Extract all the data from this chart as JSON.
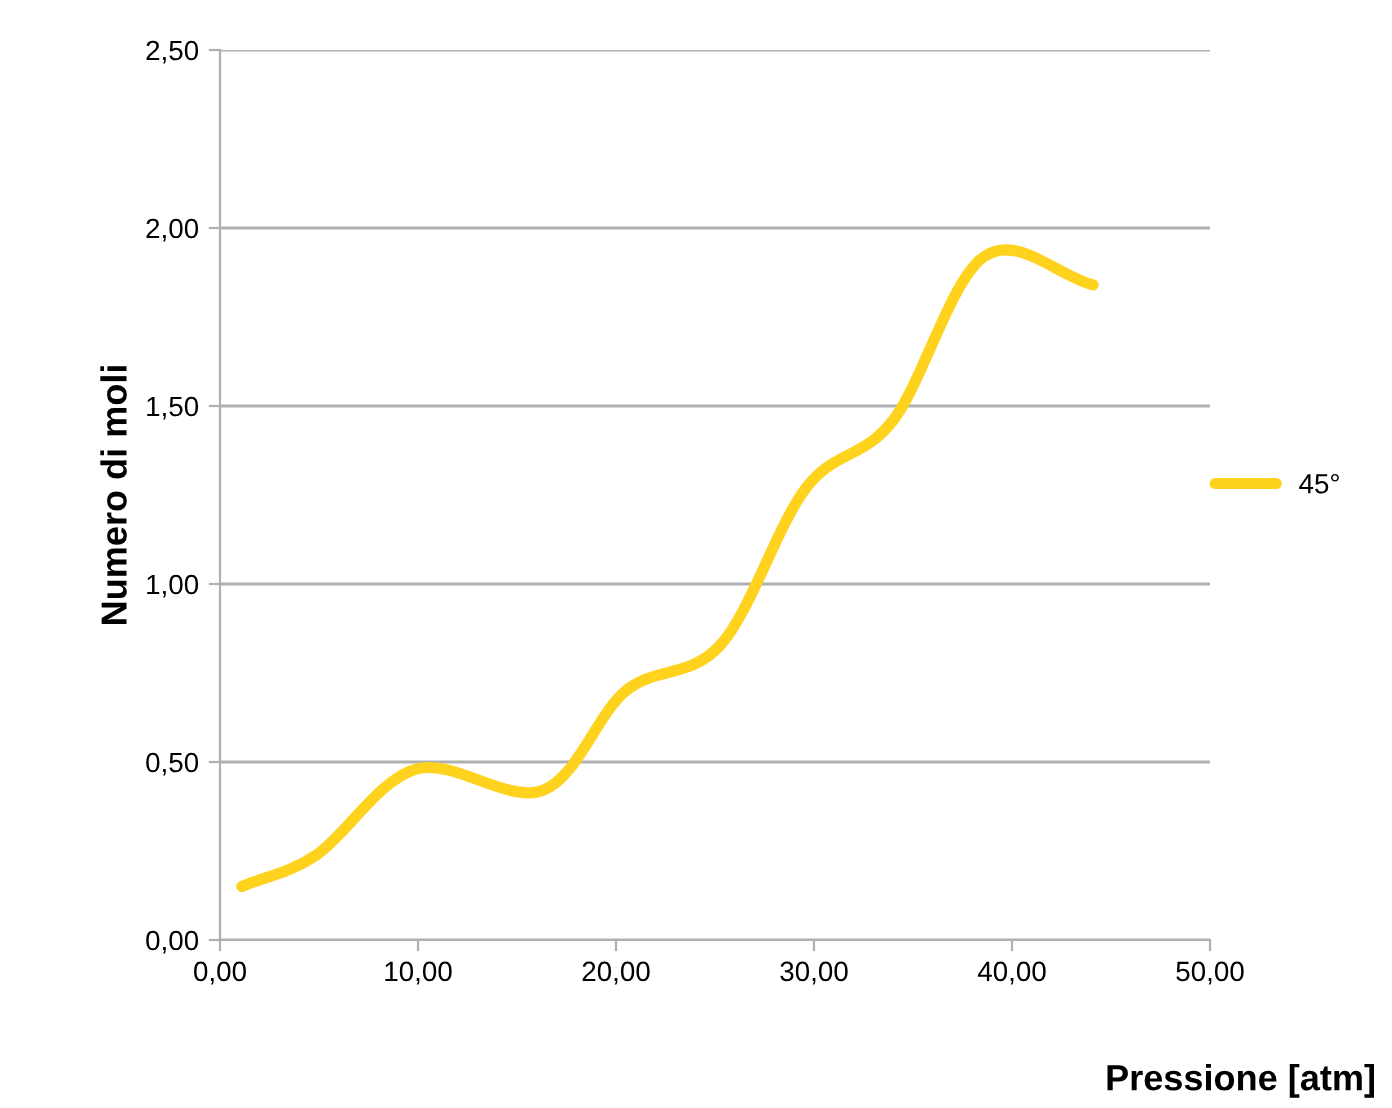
{
  "chart_data": {
    "type": "line",
    "xlabel": "Pressione [atm]",
    "ylabel": "Numero di moli",
    "x": [
      1.1,
      4.9,
      9.9,
      16.3,
      20.5,
      25.3,
      29.6,
      34.0,
      38.6,
      44.1
    ],
    "series": [
      {
        "name": "45°",
        "color": "#ffd21e",
        "values": [
          0.15,
          0.24,
          0.48,
          0.42,
          0.7,
          0.83,
          1.27,
          1.46,
          1.92,
          1.84
        ]
      }
    ],
    "xlim": [
      0,
      50
    ],
    "xticks": [
      {
        "value": 0,
        "label": "0,00"
      },
      {
        "value": 10,
        "label": "10,00"
      },
      {
        "value": 20,
        "label": "20,00"
      },
      {
        "value": 30,
        "label": "30,00"
      },
      {
        "value": 40,
        "label": "40,00"
      },
      {
        "value": 50,
        "label": "50,00"
      }
    ],
    "ylim": [
      0,
      2.5
    ],
    "yticks": [
      {
        "value": 0,
        "label": "0,00"
      },
      {
        "value": 0.5,
        "label": "0,50"
      },
      {
        "value": 1,
        "label": "1,00"
      },
      {
        "value": 1.5,
        "label": "1,50"
      },
      {
        "value": 2,
        "label": "2,00"
      },
      {
        "value": 2.5,
        "label": "2,50"
      }
    ],
    "grid": "y",
    "legend": "right"
  }
}
